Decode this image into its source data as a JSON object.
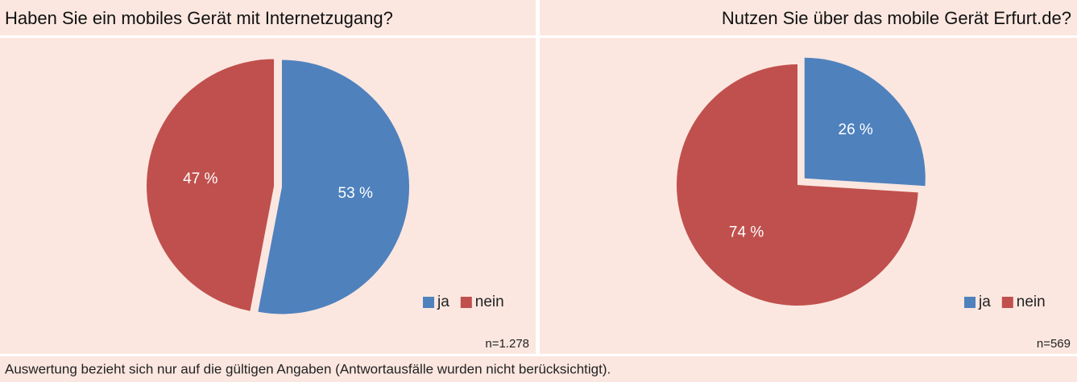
{
  "chart_data": [
    {
      "type": "pie",
      "title": "Haben Sie ein mobiles Gerät mit Internetzugang?",
      "categories": [
        "ja",
        "nein"
      ],
      "values": [
        53,
        47
      ],
      "value_labels": [
        "53 %",
        "47 %"
      ],
      "colors": [
        "#4f81bd",
        "#c0504d"
      ],
      "legend": "bottom-right",
      "note": "n=1.278"
    },
    {
      "type": "pie",
      "title": "Nutzen Sie über das mobile Gerät Erfurt.de?",
      "categories": [
        "ja",
        "nein"
      ],
      "values": [
        26,
        74
      ],
      "value_labels": [
        "26 %",
        "74 %"
      ],
      "colors": [
        "#4f81bd",
        "#c0504d"
      ],
      "legend": "bottom-right",
      "note": "n=569"
    }
  ],
  "footer": "Auswertung bezieht sich nur auf die gültigen Angaben (Antwortausfälle wurden nicht berücksichtigt)."
}
